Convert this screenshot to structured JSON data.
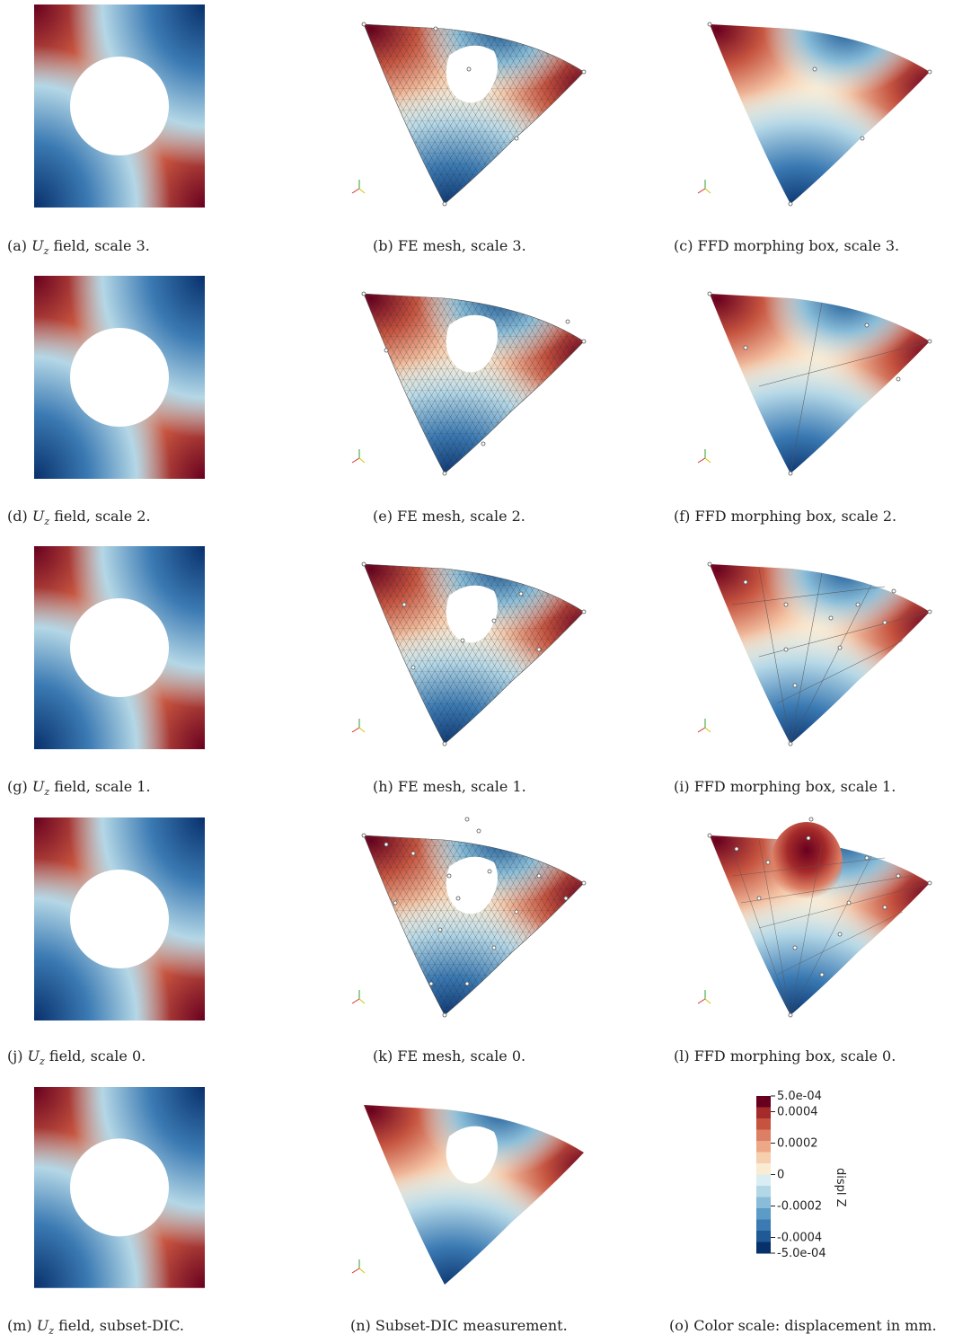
{
  "panels": [
    {
      "id": "a",
      "label": "(a)",
      "field_symbol": "U",
      "field_sub": "z",
      "text": "field, scale 3."
    },
    {
      "id": "b",
      "label": "(b)",
      "text": "FE mesh, scale 3."
    },
    {
      "id": "c",
      "label": "(c)",
      "text": "FFD morphing box, scale 3."
    },
    {
      "id": "d",
      "label": "(d)",
      "field_symbol": "U",
      "field_sub": "z",
      "text": "field, scale 2."
    },
    {
      "id": "e",
      "label": "(e)",
      "text": "FE mesh, scale 2."
    },
    {
      "id": "f",
      "label": "(f)",
      "text": "FFD morphing box, scale 2."
    },
    {
      "id": "g",
      "label": "(g)",
      "field_symbol": "U",
      "field_sub": "z",
      "text": "field, scale 1."
    },
    {
      "id": "h",
      "label": "(h)",
      "text": "FE mesh, scale 1."
    },
    {
      "id": "i",
      "label": "(i)",
      "text": "FFD morphing box, scale 1."
    },
    {
      "id": "j",
      "label": "(j)",
      "field_symbol": "U",
      "field_sub": "z",
      "text": "field, scale 0."
    },
    {
      "id": "k",
      "label": "(k)",
      "text": "FE mesh, scale 0."
    },
    {
      "id": "l",
      "label": "(l)",
      "text": "FFD morphing box, scale 0."
    },
    {
      "id": "m",
      "label": "(m)",
      "field_symbol": "U",
      "field_sub": "z",
      "text": "field, subset-DIC."
    },
    {
      "id": "n",
      "label": "(n)",
      "text": "Subset-DIC measurement."
    },
    {
      "id": "o",
      "label": "(o)",
      "text": "Color scale: displacement in mm."
    }
  ],
  "axes_triad": {
    "x": "x",
    "y": "y",
    "z": "z",
    "x_color": "#d62728",
    "y_color": "#d4c300",
    "z_color": "#2ca02c"
  },
  "colorbar": {
    "title": "displ Z",
    "tick_labels": [
      "5.0e-04",
      "0.0004",
      "0.0002",
      "0",
      "-0.0002",
      "-0.0004",
      "-5.0e-04"
    ],
    "tick_values": [
      0.0005,
      0.0004,
      0.0002,
      0,
      -0.0002,
      -0.0004,
      -0.0005
    ],
    "range": [
      -0.0005,
      0.0005
    ],
    "colors": [
      "#08306b",
      "#1f5a96",
      "#3b7ab3",
      "#5b9bc6",
      "#88bcd8",
      "#b4d7e6",
      "#d9edf3",
      "#faebd3",
      "#f6cfae",
      "#eda887",
      "#dd7f64",
      "#c5533f",
      "#a52a2a",
      "#67001f"
    ]
  }
}
